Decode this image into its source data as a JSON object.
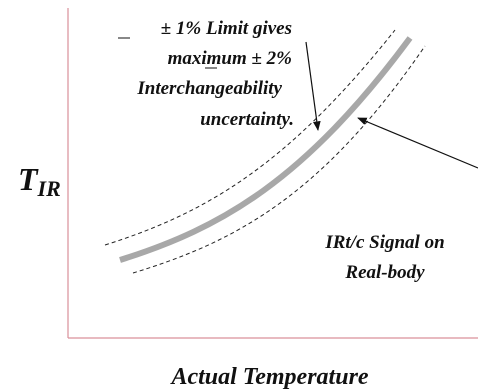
{
  "annotation": {
    "lines": [
      "± 1% Limit gives",
      "maximum ± 2%",
      "Interchangeability",
      "uncertainty."
    ]
  },
  "signal_label": {
    "lines": [
      "IRt/c Signal on",
      "Real-body"
    ]
  },
  "y_axis": {
    "main": "T",
    "subscript": "IR"
  },
  "x_axis": {
    "label": "Actual Temperature"
  }
}
